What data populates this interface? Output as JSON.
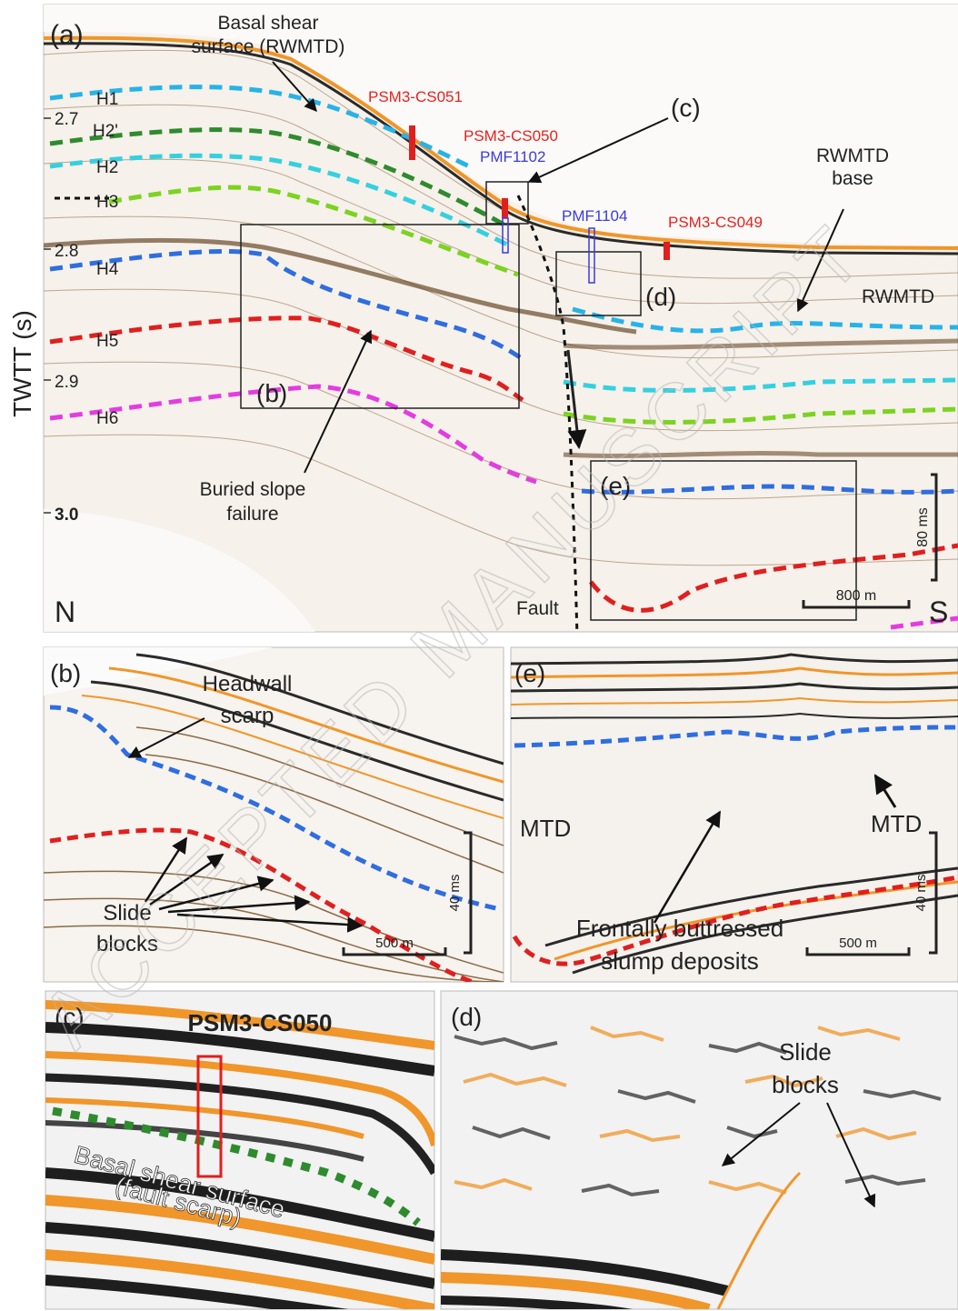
{
  "watermark": "ACCEPTED MANUSCRIPT",
  "panel_a": {
    "letter": "(a)",
    "y_axis_label": "TWTT (s)",
    "ticks": [
      "2.7",
      "2.8",
      "2.9",
      "3.0"
    ],
    "horizons": [
      "H1",
      "H2'",
      "H2",
      "H3",
      "H4",
      "H5",
      "H6"
    ],
    "basal_label_line1": "Basal shear",
    "basal_label_line2": "surface (RWMTD)",
    "cores_red": [
      "PSM3-CS051",
      "PSM3-CS050",
      "PSM3-CS049"
    ],
    "cores_blue": [
      "PMF1102",
      "PMF1104"
    ],
    "box_c": "(c)",
    "box_b": "(b)",
    "box_d": "(d)",
    "box_e": "(e)",
    "rwmtd_base_line1": "RWMTD",
    "rwmtd_base_line2": "base",
    "rwmtd": "RWMTD",
    "buried_line1": "Buried slope",
    "buried_line2": "failure",
    "fault": "Fault",
    "north": "N",
    "south": "S",
    "vscale": "80 ms",
    "hscale": "800 m"
  },
  "panel_b": {
    "letter": "(b)",
    "headwall_line1": "Headwall",
    "headwall_line2": "scarp",
    "slide_line1": "Slide",
    "slide_line2": "blocks",
    "vscale": "40 ms",
    "hscale": "500 m"
  },
  "panel_e": {
    "letter": "(e)",
    "mtd_left": "MTD",
    "mtd_right": "MTD",
    "frontal_line1": "Frontally buttressed",
    "frontal_line2": "slump deposits",
    "vscale": "40 ms",
    "hscale": "500 m"
  },
  "panel_c": {
    "letter": "(c)",
    "core": "PSM3-CS050",
    "basal_line1": "Basal shear surface",
    "basal_line2": "(fault scarp)"
  },
  "panel_d": {
    "letter": "(d)",
    "slide_line1": "Slide",
    "slide_line2": "blocks"
  },
  "colors": {
    "orange": "#f0962a",
    "dark": "#2a2a2a",
    "cyan": "#27b3e8",
    "green": "#2e8b2e",
    "lime": "#7cd321",
    "blue": "#2f6de0",
    "red": "#e01f1f",
    "magenta": "#e43ce0"
  }
}
